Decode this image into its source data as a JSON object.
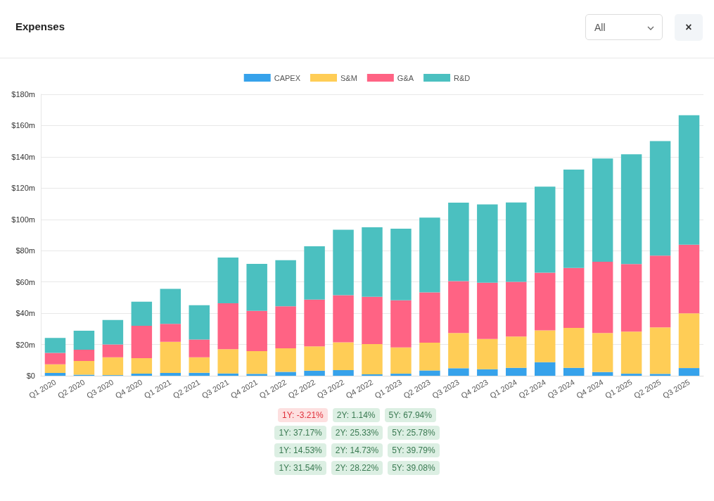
{
  "chart_data": {
    "type": "bar",
    "title": "Expenses",
    "stacked": true,
    "legend": "top",
    "grid": "y",
    "categories": [
      "Q1 2020",
      "Q2 2020",
      "Q3 2020",
      "Q4 2020",
      "Q1 2021",
      "Q2 2021",
      "Q3 2021",
      "Q4 2021",
      "Q1 2022",
      "Q2 2022",
      "Q3 2022",
      "Q4 2022",
      "Q1 2023",
      "Q2 2023",
      "Q3 2023",
      "Q4 2023",
      "Q1 2024",
      "Q2 2024",
      "Q3 2024",
      "Q4 2024",
      "Q1 2025",
      "Q2 2025",
      "Q3 2025"
    ],
    "series": [
      {
        "name": "CAPEX",
        "color": "#36a2eb",
        "values": [
          1.8,
          0.7,
          0.4,
          1.3,
          1.8,
          1.9,
          1.5,
          1.2,
          2.5,
          3.3,
          3.6,
          0.9,
          1.3,
          3.4,
          4.8,
          4.2,
          5.1,
          8.7,
          5.1,
          2.4,
          1.3,
          1.2,
          4.9
        ]
      },
      {
        "name": "S&M",
        "color": "#ffcd56",
        "values": [
          5.5,
          8.7,
          11.4,
          9.9,
          19.9,
          9.9,
          15.5,
          14.6,
          15.0,
          15.5,
          17.8,
          19.3,
          16.8,
          17.7,
          22.5,
          19.3,
          20.0,
          20.3,
          25.5,
          24.9,
          26.9,
          29.7,
          35.0
        ]
      },
      {
        "name": "G&A",
        "color": "#ff6384",
        "values": [
          7.3,
          7.3,
          8.2,
          20.8,
          11.5,
          11.4,
          29.3,
          25.7,
          26.9,
          29.9,
          30.1,
          30.3,
          30.2,
          32.2,
          33.2,
          36.0,
          35.0,
          36.9,
          38.4,
          45.6,
          43.2,
          45.9,
          43.9
        ]
      },
      {
        "name": "R&D",
        "color": "#4bc0c0",
        "values": [
          9.6,
          12.1,
          15.7,
          15.4,
          22.4,
          21.9,
          29.3,
          30.1,
          29.5,
          34.1,
          41.9,
          44.5,
          45.7,
          47.8,
          50.2,
          50.1,
          50.7,
          55.0,
          62.8,
          66.0,
          70.2,
          73.3,
          82.8
        ]
      }
    ],
    "ylim": [
      0,
      180
    ],
    "yticks": [
      {
        "value": 0,
        "label": "$0"
      },
      {
        "value": 20,
        "label": "$20m"
      },
      {
        "value": 40,
        "label": "$40m"
      },
      {
        "value": 60,
        "label": "$60m"
      },
      {
        "value": 80,
        "label": "$80m"
      },
      {
        "value": 100,
        "label": "$100m"
      },
      {
        "value": 120,
        "label": "$120m"
      },
      {
        "value": 140,
        "label": "$140m"
      },
      {
        "value": 160,
        "label": "$160m"
      },
      {
        "value": 180,
        "label": "$180m"
      }
    ],
    "annotations": [
      "All",
      "×",
      "1Y: -3.21%",
      "2Y: 1.14%",
      "5Y: 67.94%",
      "1Y: 37.17%",
      "2Y: 25.33%",
      "5Y: 25.78%",
      "1Y: 14.53%",
      "2Y: 14.73%",
      "5Y: 39.79%",
      "1Y: 31.54%",
      "2Y: 28.22%",
      "5Y: 39.08%"
    ]
  }
}
